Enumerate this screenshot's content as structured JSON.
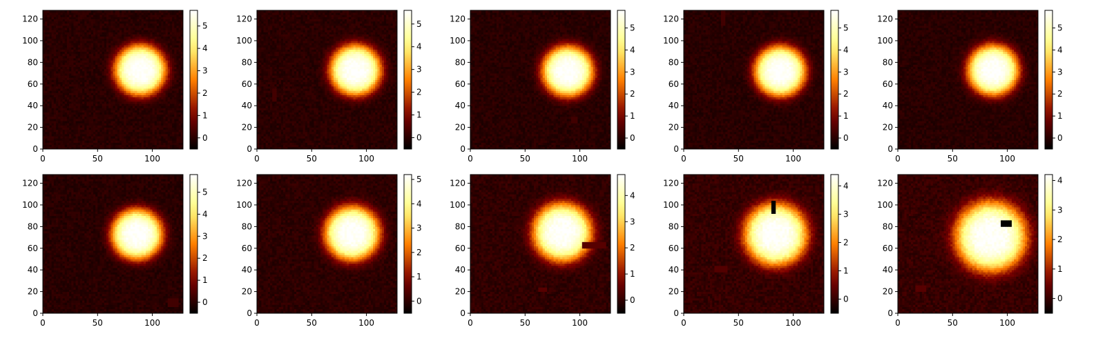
{
  "chart_data": [
    {
      "type": "heatmap",
      "title": "",
      "xlabel": "",
      "ylabel": "",
      "xlim": [
        0,
        128
      ],
      "ylim": [
        0,
        128
      ],
      "xticks": [
        "0",
        "50",
        "100"
      ],
      "yticks": [
        "0",
        "20",
        "40",
        "60",
        "80",
        "100",
        "120"
      ],
      "colormap": "afmhot",
      "blob": {
        "cx": 89,
        "cy": 73,
        "sigma": 13,
        "peak": 5.7
      },
      "masked_regions": [],
      "colorbar": {
        "min": -0.5,
        "max": 5.7,
        "ticks": [
          "0",
          "1",
          "2",
          "3",
          "4",
          "5"
        ]
      }
    },
    {
      "type": "heatmap",
      "title": "",
      "xlabel": "",
      "ylabel": "",
      "xlim": [
        0,
        128
      ],
      "ylim": [
        0,
        128
      ],
      "xticks": [
        "0",
        "50",
        "100"
      ],
      "yticks": [
        "0",
        "20",
        "40",
        "60",
        "80",
        "100",
        "120"
      ],
      "colormap": "afmhot",
      "blob": {
        "cx": 90,
        "cy": 73,
        "sigma": 13,
        "peak": 5.6
      },
      "masked_regions": [
        {
          "x0": 15,
          "x1": 18,
          "y0": 45,
          "y1": 56,
          "v": 0.3
        }
      ],
      "colorbar": {
        "min": -0.5,
        "max": 5.6,
        "ticks": [
          "0",
          "1",
          "2",
          "3",
          "4",
          "5"
        ]
      }
    },
    {
      "type": "heatmap",
      "title": "",
      "xlabel": "",
      "ylabel": "",
      "xlim": [
        0,
        128
      ],
      "ylim": [
        0,
        128
      ],
      "xticks": [
        "0",
        "50",
        "100"
      ],
      "yticks": [
        "0",
        "20",
        "40",
        "60",
        "80",
        "100",
        "120"
      ],
      "colormap": "afmhot",
      "blob": {
        "cx": 89,
        "cy": 72,
        "sigma": 13,
        "peak": 5.8
      },
      "masked_regions": [
        {
          "x0": 93,
          "x1": 98,
          "y0": 24,
          "y1": 29,
          "v": 0.3
        }
      ],
      "colorbar": {
        "min": -0.5,
        "max": 5.8,
        "ticks": [
          "0",
          "1",
          "2",
          "3",
          "4",
          "5"
        ]
      }
    },
    {
      "type": "heatmap",
      "title": "",
      "xlabel": "",
      "ylabel": "",
      "xlim": [
        0,
        128
      ],
      "ylim": [
        0,
        128
      ],
      "xticks": [
        "0",
        "50",
        "100"
      ],
      "yticks": [
        "0",
        "20",
        "40",
        "60",
        "80",
        "100",
        "120"
      ],
      "colormap": "afmhot",
      "blob": {
        "cx": 88,
        "cy": 72,
        "sigma": 13,
        "peak": 5.8
      },
      "masked_regions": [
        {
          "x0": 34,
          "x1": 38,
          "y0": 114,
          "y1": 128,
          "v": 0.3
        }
      ],
      "colorbar": {
        "min": -0.5,
        "max": 5.8,
        "ticks": [
          "0",
          "1",
          "2",
          "3",
          "4",
          "5"
        ]
      }
    },
    {
      "type": "heatmap",
      "title": "",
      "xlabel": "",
      "ylabel": "",
      "xlim": [
        0,
        128
      ],
      "ylim": [
        0,
        128
      ],
      "xticks": [
        "0",
        "50",
        "100"
      ],
      "yticks": [
        "0",
        "20",
        "40",
        "60",
        "80",
        "100",
        "120"
      ],
      "colormap": "afmhot",
      "blob": {
        "cx": 87,
        "cy": 73,
        "sigma": 13,
        "peak": 5.8
      },
      "masked_regions": [],
      "colorbar": {
        "min": -0.5,
        "max": 5.8,
        "ticks": [
          "0",
          "1",
          "2",
          "3",
          "4",
          "5"
        ]
      }
    },
    {
      "type": "heatmap",
      "title": "",
      "xlabel": "",
      "ylabel": "",
      "xlim": [
        0,
        128
      ],
      "ylim": [
        0,
        128
      ],
      "xticks": [
        "0",
        "50",
        "100"
      ],
      "yticks": [
        "0",
        "20",
        "40",
        "60",
        "80",
        "100",
        "120"
      ],
      "colormap": "afmhot",
      "blob": {
        "cx": 86,
        "cy": 73,
        "sigma": 13,
        "peak": 5.8
      },
      "masked_regions": [
        {
          "x0": 114,
          "x1": 124,
          "y0": 6,
          "y1": 13,
          "v": 0.3
        }
      ],
      "colorbar": {
        "min": -0.5,
        "max": 5.8,
        "ticks": [
          "0",
          "1",
          "2",
          "3",
          "4",
          "5"
        ]
      }
    },
    {
      "type": "heatmap",
      "title": "",
      "xlabel": "",
      "ylabel": "",
      "xlim": [
        0,
        128
      ],
      "ylim": [
        0,
        128
      ],
      "xticks": [
        "0",
        "50",
        "100"
      ],
      "yticks": [
        "0",
        "20",
        "40",
        "60",
        "80",
        "100",
        "120"
      ],
      "colormap": "afmhot",
      "blob": {
        "cx": 87,
        "cy": 74,
        "sigma": 14,
        "peak": 5.2
      },
      "masked_regions": [],
      "colorbar": {
        "min": -0.5,
        "max": 5.2,
        "ticks": [
          "0",
          "1",
          "2",
          "3",
          "4",
          "5"
        ]
      }
    },
    {
      "type": "heatmap",
      "title": "",
      "xlabel": "",
      "ylabel": "",
      "xlim": [
        0,
        128
      ],
      "ylim": [
        0,
        128
      ],
      "xticks": [
        "0",
        "50",
        "100"
      ],
      "yticks": [
        "0",
        "20",
        "40",
        "60",
        "80",
        "100",
        "120"
      ],
      "colormap": "afmhot",
      "blob": {
        "cx": 84,
        "cy": 75,
        "sigma": 15,
        "peak": 4.8
      },
      "masked_regions": [
        {
          "x0": 103,
          "x1": 124,
          "y0": 61,
          "y1": 65,
          "v": 0.4
        },
        {
          "x0": 63,
          "x1": 70,
          "y0": 21,
          "y1": 24,
          "v": 0.4
        }
      ],
      "colorbar": {
        "min": -0.5,
        "max": 4.8,
        "ticks": [
          "0",
          "1",
          "2",
          "3",
          "4"
        ]
      }
    },
    {
      "type": "heatmap",
      "title": "",
      "xlabel": "",
      "ylabel": "",
      "xlim": [
        0,
        128
      ],
      "ylim": [
        0,
        128
      ],
      "xticks": [
        "0",
        "50",
        "100"
      ],
      "yticks": [
        "0",
        "20",
        "40",
        "60",
        "80",
        "100",
        "120"
      ],
      "colormap": "afmhot",
      "blob": {
        "cx": 84,
        "cy": 73,
        "sigma": 16,
        "peak": 4.4
      },
      "masked_regions": [
        {
          "x0": 80,
          "x1": 83,
          "y0": 92,
          "y1": 103,
          "v": -0.5
        },
        {
          "x0": 29,
          "x1": 39,
          "y0": 39,
          "y1": 43,
          "v": 0.3
        }
      ],
      "colorbar": {
        "min": -0.5,
        "max": 4.4,
        "ticks": [
          "0",
          "1",
          "2",
          "3",
          "4"
        ]
      }
    },
    {
      "type": "heatmap",
      "title": "",
      "xlabel": "",
      "ylabel": "",
      "xlim": [
        0,
        128
      ],
      "ylim": [
        0,
        128
      ],
      "xticks": [
        "0",
        "50",
        "100"
      ],
      "yticks": [
        "0",
        "20",
        "40",
        "60",
        "80",
        "100",
        "120"
      ],
      "colormap": "afmhot",
      "blob": {
        "cx": 85,
        "cy": 71,
        "sigma": 18,
        "peak": 4.2
      },
      "masked_regions": [
        {
          "x0": 94,
          "x1": 103,
          "y0": 81,
          "y1": 86,
          "v": -0.5
        },
        {
          "x0": 17,
          "x1": 26,
          "y0": 21,
          "y1": 25,
          "v": 0.3
        }
      ],
      "colorbar": {
        "min": -0.5,
        "max": 4.2,
        "ticks": [
          "0",
          "1",
          "2",
          "3",
          "4"
        ]
      }
    }
  ]
}
